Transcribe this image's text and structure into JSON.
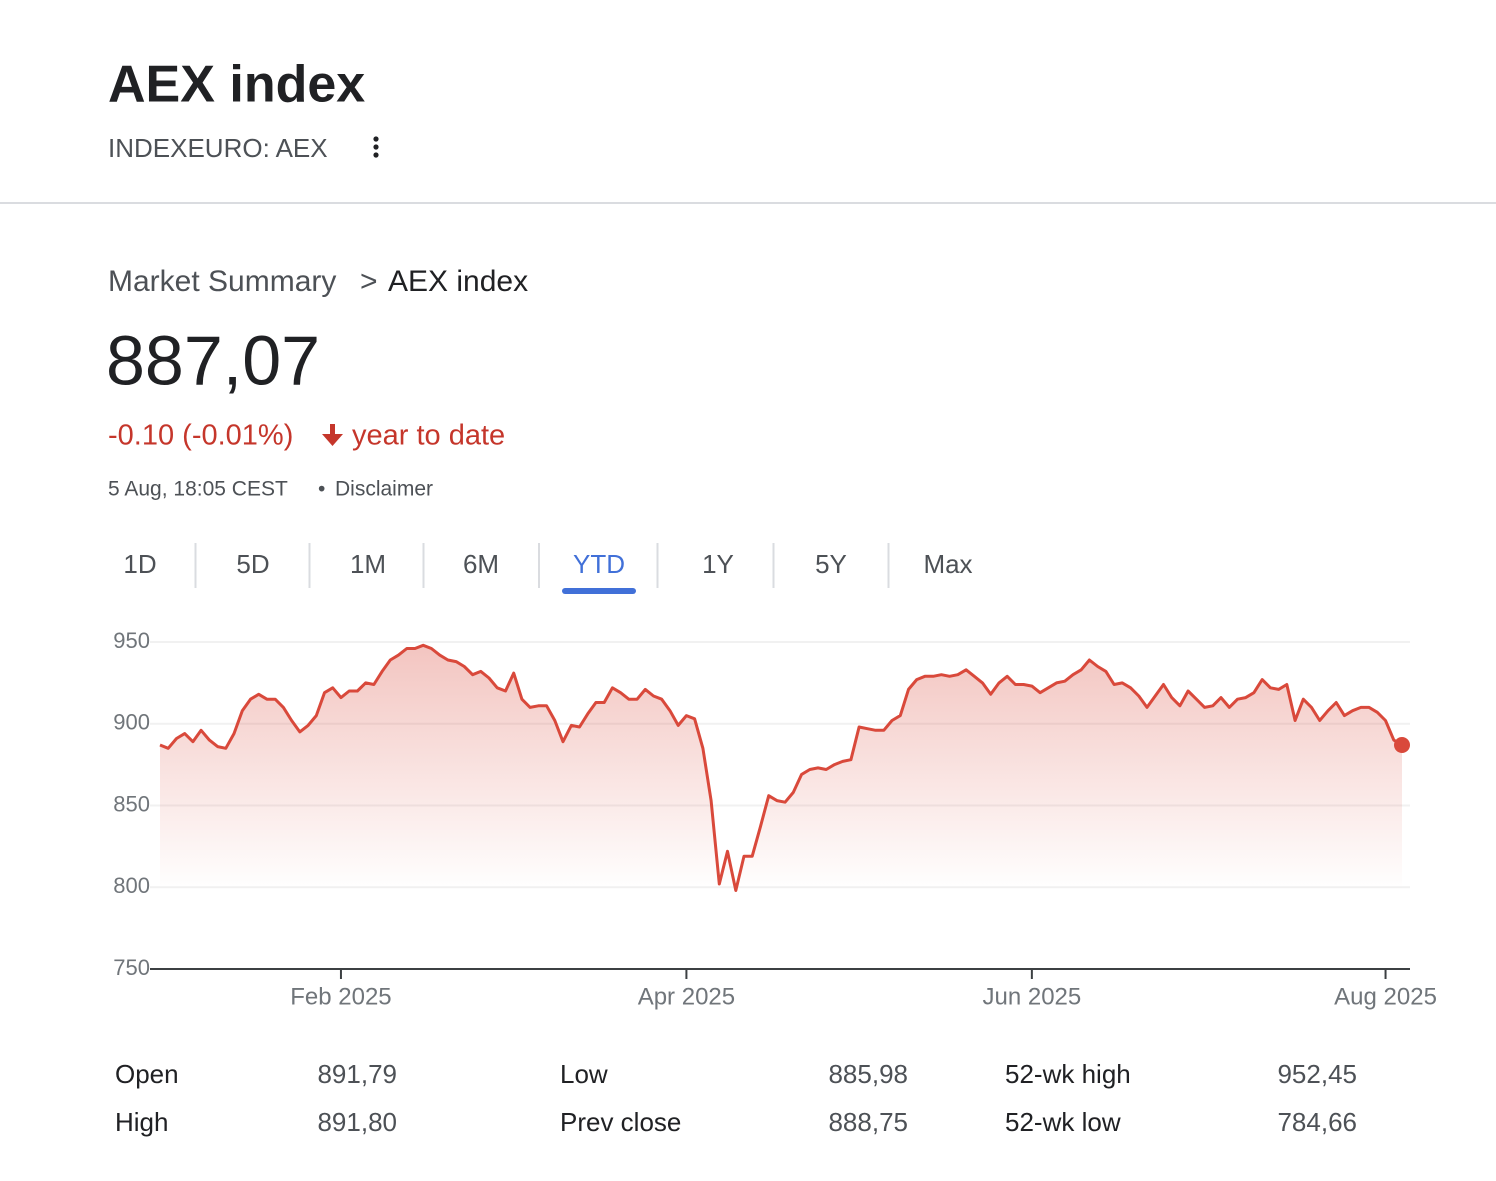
{
  "header": {
    "title": "AEX index",
    "ticker": "INDEXEURO: AEX"
  },
  "breadcrumb": {
    "parent": "Market Summary",
    "separator": ">",
    "current": "AEX index"
  },
  "quote": {
    "price": "887,07",
    "change": "-0.10 (-0.01%)",
    "period": "year to date",
    "timestamp": "5 Aug, 18:05 CEST",
    "dot": "•",
    "disclaimer": "Disclaimer"
  },
  "tabs": {
    "items": [
      "1D",
      "5D",
      "1M",
      "6M",
      "YTD",
      "1Y",
      "5Y",
      "Max"
    ],
    "active": 4
  },
  "stats": {
    "rows": [
      [
        "Open",
        "891,79",
        "Low",
        "885,98",
        "52-wk high",
        "952,45"
      ],
      [
        "High",
        "891,80",
        "Prev close",
        "888,75",
        "52-wk low",
        "784,66"
      ]
    ]
  },
  "chart_data": {
    "type": "line",
    "area": true,
    "grid": true,
    "color": "#d9493b",
    "categories": [
      null,
      null,
      null,
      null,
      null,
      null,
      null,
      null,
      null,
      null,
      null,
      null,
      null,
      null,
      null,
      null,
      null,
      null,
      null,
      null,
      null,
      null,
      "Feb 2025",
      null,
      null,
      null,
      null,
      null,
      null,
      null,
      null,
      null,
      null,
      null,
      null,
      null,
      null,
      null,
      null,
      null,
      null,
      null,
      null,
      null,
      null,
      null,
      null,
      null,
      null,
      null,
      null,
      null,
      null,
      null,
      null,
      null,
      null,
      null,
      null,
      null,
      null,
      null,
      null,
      null,
      "Apr 2025",
      null,
      null,
      null,
      null,
      null,
      null,
      null,
      null,
      null,
      null,
      null,
      null,
      null,
      null,
      null,
      null,
      null,
      null,
      null,
      null,
      null,
      null,
      null,
      null,
      null,
      null,
      null,
      null,
      null,
      null,
      null,
      null,
      null,
      null,
      null,
      null,
      null,
      null,
      null,
      null,
      null,
      "Jun 2025",
      null,
      null,
      null,
      null,
      null,
      null,
      null,
      null,
      null,
      null,
      null,
      null,
      null,
      null,
      null,
      null,
      null,
      null,
      null,
      null,
      null,
      null,
      null,
      null,
      null,
      null,
      null,
      null,
      null,
      null,
      null,
      null,
      null,
      null,
      null,
      null,
      null,
      null,
      null,
      null,
      null,
      null,
      "Aug 2025",
      null,
      null
    ],
    "values": [
      887,
      885,
      891,
      894,
      889,
      896,
      890,
      886,
      885,
      894,
      908,
      915,
      918,
      915,
      915,
      910,
      902,
      895,
      899,
      905,
      919,
      922,
      916,
      920,
      920,
      925,
      924,
      932,
      939,
      942,
      946,
      946,
      948,
      946,
      942,
      939,
      938,
      935,
      930,
      932,
      928,
      922,
      920,
      931,
      915,
      910,
      911,
      911,
      902,
      889,
      899,
      898,
      906,
      913,
      913,
      922,
      919,
      915,
      915,
      921,
      917,
      915,
      908,
      899,
      905,
      903,
      885,
      853,
      802,
      822,
      798,
      819,
      819,
      837,
      856,
      853,
      852,
      858,
      869,
      872,
      873,
      872,
      875,
      877,
      878,
      898,
      897,
      896,
      896,
      902,
      905,
      921,
      927,
      929,
      929,
      930,
      929,
      930,
      933,
      929,
      925,
      918,
      925,
      929,
      924,
      924,
      923,
      919,
      922,
      925,
      926,
      930,
      933,
      939,
      935,
      932,
      924,
      925,
      922,
      917,
      910,
      917,
      924,
      916,
      911,
      920,
      915,
      910,
      911,
      916,
      910,
      915,
      916,
      919,
      927,
      922,
      921,
      924,
      902,
      915,
      910,
      902,
      908,
      913,
      905,
      908,
      910,
      910,
      907,
      902,
      890,
      887
    ],
    "ylim": [
      750,
      950
    ],
    "yticks": [
      750,
      800,
      850,
      900,
      950
    ]
  }
}
